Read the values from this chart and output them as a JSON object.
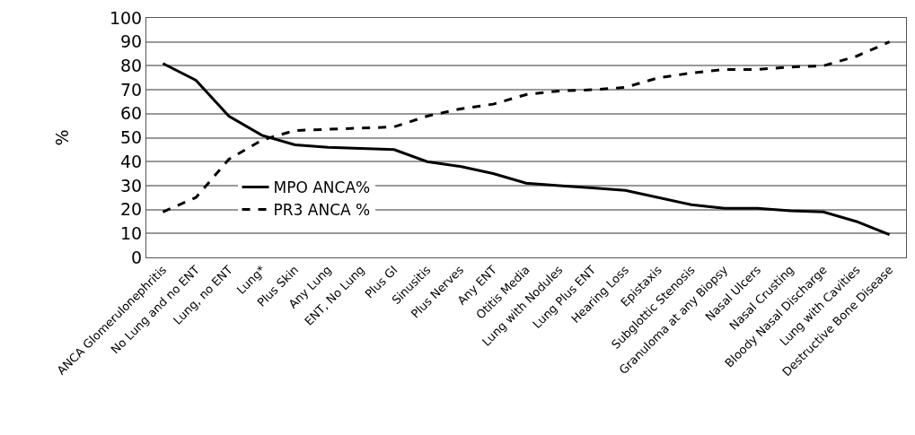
{
  "chart_data": {
    "type": "line",
    "ylabel": "%",
    "categories": [
      "ANCA Glomerulonephritis",
      "No Lung and no ENT",
      "Lung, no ENT",
      "Lung*",
      "Plus Skin",
      "Any Lung",
      "ENT, No Lung",
      "Plus GI",
      "Sinusitis",
      "Plus Nerves",
      "Any ENT",
      "Otitis Media",
      "Lung with Nodules",
      "Lung Plus ENT",
      "Hearing Loss",
      "Epistaxis",
      "Subglottic Stenosis",
      "Granuloma at any Biopsy",
      "Nasal Ulcers",
      "Nasal Crusting",
      "Bloody Nasal Discharge",
      "Lung with Cavities",
      "Destructive Bone Disease"
    ],
    "series": [
      {
        "name": "MPO ANCA%",
        "color": "#000000",
        "line_style": "solid",
        "values": [
          81,
          74,
          59,
          51,
          47,
          46,
          45.5,
          45,
          40,
          38,
          35,
          31,
          30,
          29,
          28,
          25,
          22,
          20.5,
          20.5,
          19.5,
          19,
          15,
          9.5
        ]
      },
      {
        "name": "PR3 ANCA %",
        "color": "#000000",
        "line_style": "dashed",
        "values": [
          19,
          25,
          41,
          49,
          53,
          53.5,
          54,
          54.5,
          59,
          62,
          64,
          68,
          69.5,
          70,
          71,
          75,
          77,
          78.5,
          78.5,
          79.5,
          80,
          84,
          90
        ]
      }
    ],
    "ylim": [
      0,
      100
    ],
    "yticks": [
      0,
      10,
      20,
      30,
      40,
      50,
      60,
      70,
      80,
      90,
      100
    ],
    "grid": "y",
    "legend": "left",
    "marker": "none"
  }
}
